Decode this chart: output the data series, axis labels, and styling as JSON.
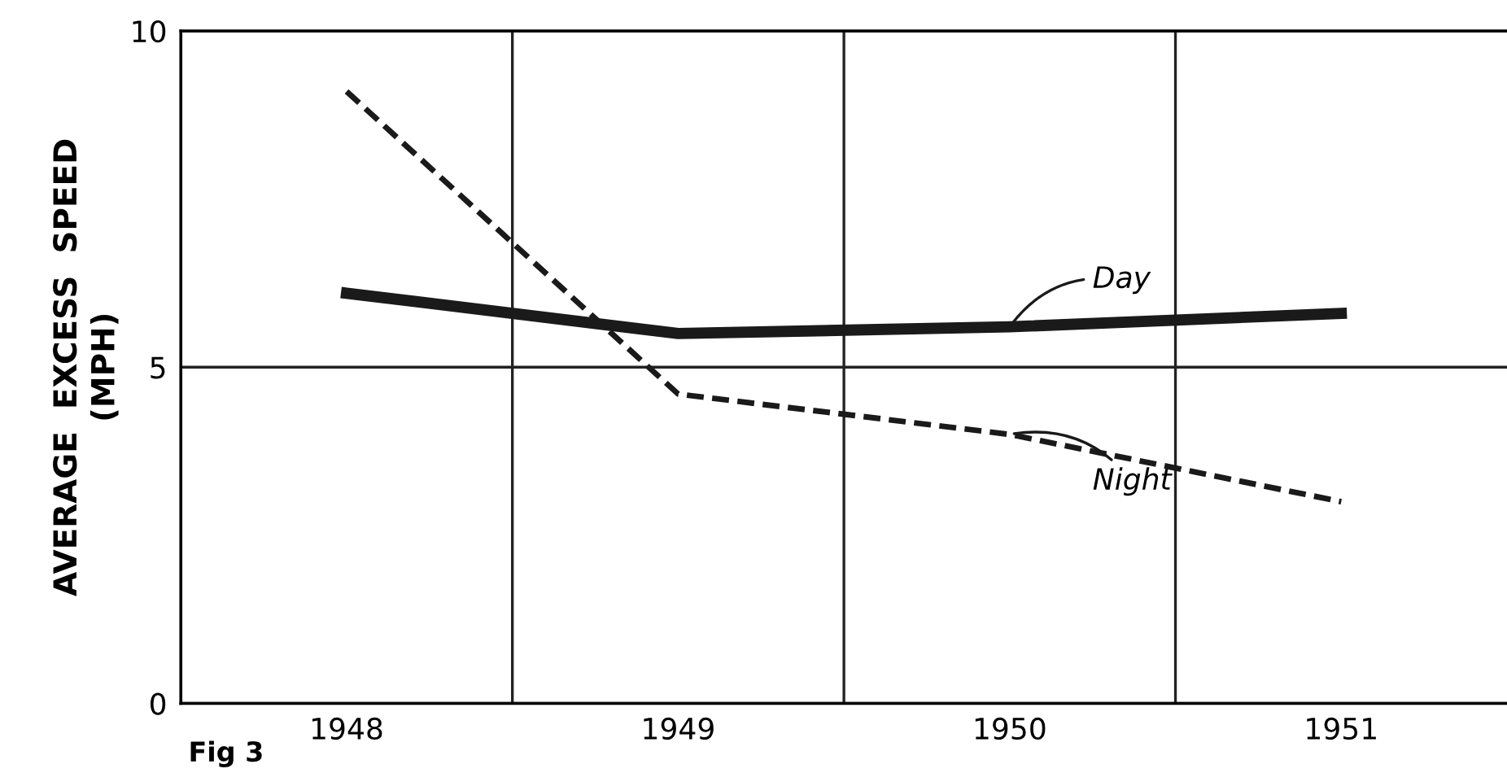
{
  "chart_data": {
    "type": "line",
    "ylabel": "AVERAGE  EXCESS  SPEED\n(MPH)",
    "categories": [
      "1948",
      "1949",
      "1950",
      "1951"
    ],
    "series": [
      {
        "name": "Day",
        "color": "#1a1a1a",
        "line_style": "solid",
        "values": [
          6.1,
          5.5,
          5.6,
          5.8
        ]
      },
      {
        "name": "Night",
        "color": "#1a1a1a",
        "line_style": "dashed",
        "values": [
          9.1,
          4.6,
          4.0,
          3.0
        ]
      }
    ],
    "ylim": [
      0,
      10
    ],
    "yticks": [
      0,
      5,
      10
    ],
    "grid": true,
    "legend": false,
    "marker": "none",
    "annotations": [
      "Fig 3"
    ]
  }
}
